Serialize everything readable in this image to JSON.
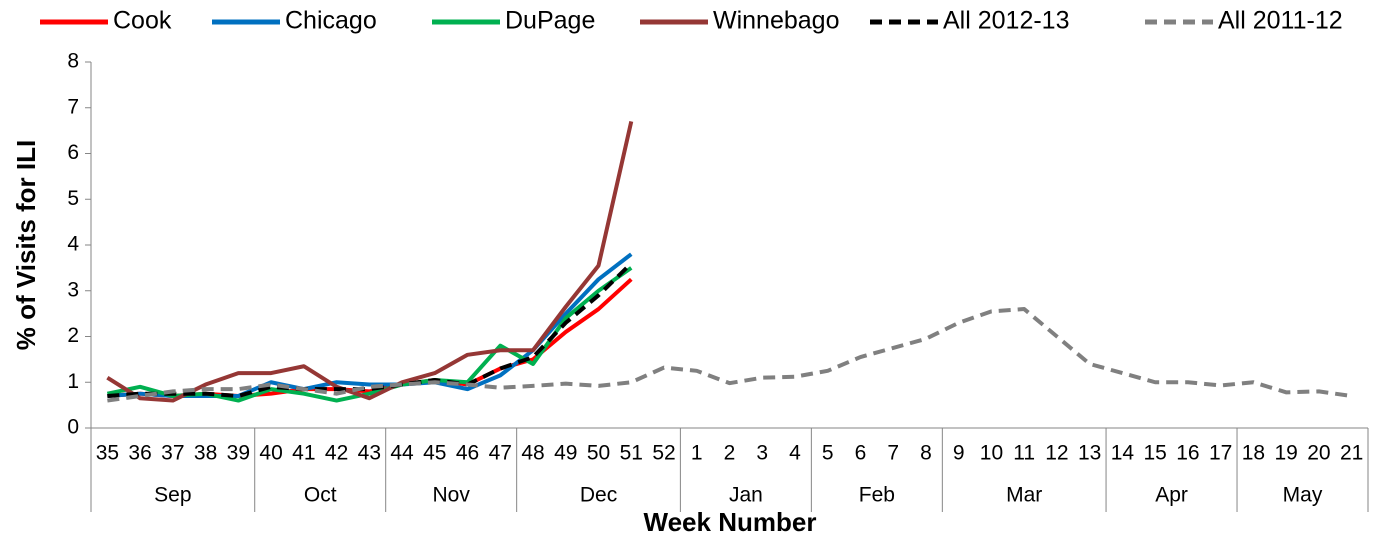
{
  "chart_data": {
    "type": "line",
    "y_label": "% of Visits for ILI",
    "x_label": "Week Number",
    "categories": [
      "35",
      "36",
      "37",
      "38",
      "39",
      "40",
      "41",
      "42",
      "43",
      "44",
      "45",
      "46",
      "47",
      "48",
      "49",
      "50",
      "51",
      "52",
      "1",
      "2",
      "3",
      "4",
      "5",
      "6",
      "7",
      "8",
      "9",
      "10",
      "11",
      "12",
      "13",
      "14",
      "15",
      "16",
      "17",
      "18",
      "19",
      "20",
      "21"
    ],
    "month_groups": [
      {
        "label": "Sep",
        "count": 5
      },
      {
        "label": "Oct",
        "count": 4
      },
      {
        "label": "Nov",
        "count": 4
      },
      {
        "label": "Dec",
        "count": 5
      },
      {
        "label": "Jan",
        "count": 4
      },
      {
        "label": "Feb",
        "count": 4
      },
      {
        "label": "Mar",
        "count": 5
      },
      {
        "label": "Apr",
        "count": 4
      },
      {
        "label": "May",
        "count": 4
      }
    ],
    "ylim": [
      0,
      8
    ],
    "yticks": [
      0,
      1,
      2,
      3,
      4,
      5,
      6,
      7,
      8
    ],
    "series": [
      {
        "name": "Cook",
        "color": "#ff0000",
        "dashed": false,
        "values": [
          0.7,
          0.75,
          0.7,
          0.75,
          0.7,
          0.75,
          0.85,
          0.85,
          0.8,
          0.95,
          1.05,
          0.95,
          1.3,
          1.5,
          2.1,
          2.6,
          3.25,
          null,
          null,
          null,
          null,
          null,
          null,
          null,
          null,
          null,
          null,
          null,
          null,
          null,
          null,
          null,
          null,
          null,
          null,
          null,
          null,
          null,
          null
        ]
      },
      {
        "name": "Chicago",
        "color": "#0070c0",
        "dashed": false,
        "values": [
          0.7,
          0.75,
          0.7,
          0.7,
          0.7,
          1.0,
          0.85,
          1.0,
          0.95,
          0.95,
          1.0,
          0.85,
          1.15,
          1.7,
          2.5,
          3.25,
          3.8,
          null,
          null,
          null,
          null,
          null,
          null,
          null,
          null,
          null,
          null,
          null,
          null,
          null,
          null,
          null,
          null,
          null,
          null,
          null,
          null,
          null,
          null
        ]
      },
      {
        "name": "DuPage",
        "color": "#00b050",
        "dashed": false,
        "values": [
          0.75,
          0.9,
          0.7,
          0.75,
          0.6,
          0.85,
          0.75,
          0.6,
          0.75,
          0.95,
          1.05,
          1.0,
          1.8,
          1.4,
          2.4,
          3.0,
          3.5,
          null,
          null,
          null,
          null,
          null,
          null,
          null,
          null,
          null,
          null,
          null,
          null,
          null,
          null,
          null,
          null,
          null,
          null,
          null,
          null,
          null,
          null
        ]
      },
      {
        "name": "Winnebago",
        "color": "#953735",
        "dashed": false,
        "values": [
          1.1,
          0.65,
          0.6,
          0.95,
          1.2,
          1.2,
          1.35,
          0.9,
          0.65,
          1.0,
          1.2,
          1.6,
          1.7,
          1.7,
          2.65,
          3.55,
          6.7,
          null,
          null,
          null,
          null,
          null,
          null,
          null,
          null,
          null,
          null,
          null,
          null,
          null,
          null,
          null,
          null,
          null,
          null,
          null,
          null,
          null,
          null
        ]
      },
      {
        "name": "All 2012-13",
        "color": "#000000",
        "dashed": true,
        "values": [
          0.7,
          0.75,
          0.75,
          0.75,
          0.7,
          0.9,
          0.85,
          0.85,
          0.85,
          0.95,
          1.05,
          0.95,
          1.3,
          1.55,
          2.3,
          2.9,
          3.6,
          null,
          null,
          null,
          null,
          null,
          null,
          null,
          null,
          null,
          null,
          null,
          null,
          null,
          null,
          null,
          null,
          null,
          null,
          null,
          null,
          null,
          null
        ]
      },
      {
        "name": "All 2011-12",
        "color": "#808080",
        "dashed": true,
        "values": [
          0.6,
          0.7,
          0.8,
          0.85,
          0.85,
          0.95,
          0.85,
          0.75,
          0.9,
          0.95,
          1.0,
          0.95,
          0.88,
          0.92,
          0.97,
          0.92,
          1.0,
          1.32,
          1.25,
          0.98,
          1.1,
          1.12,
          1.25,
          1.55,
          1.75,
          1.95,
          2.3,
          2.55,
          2.6,
          2.0,
          1.4,
          1.2,
          1.0,
          1.0,
          0.93,
          1.0,
          0.78,
          0.8,
          0.7
        ]
      }
    ]
  }
}
